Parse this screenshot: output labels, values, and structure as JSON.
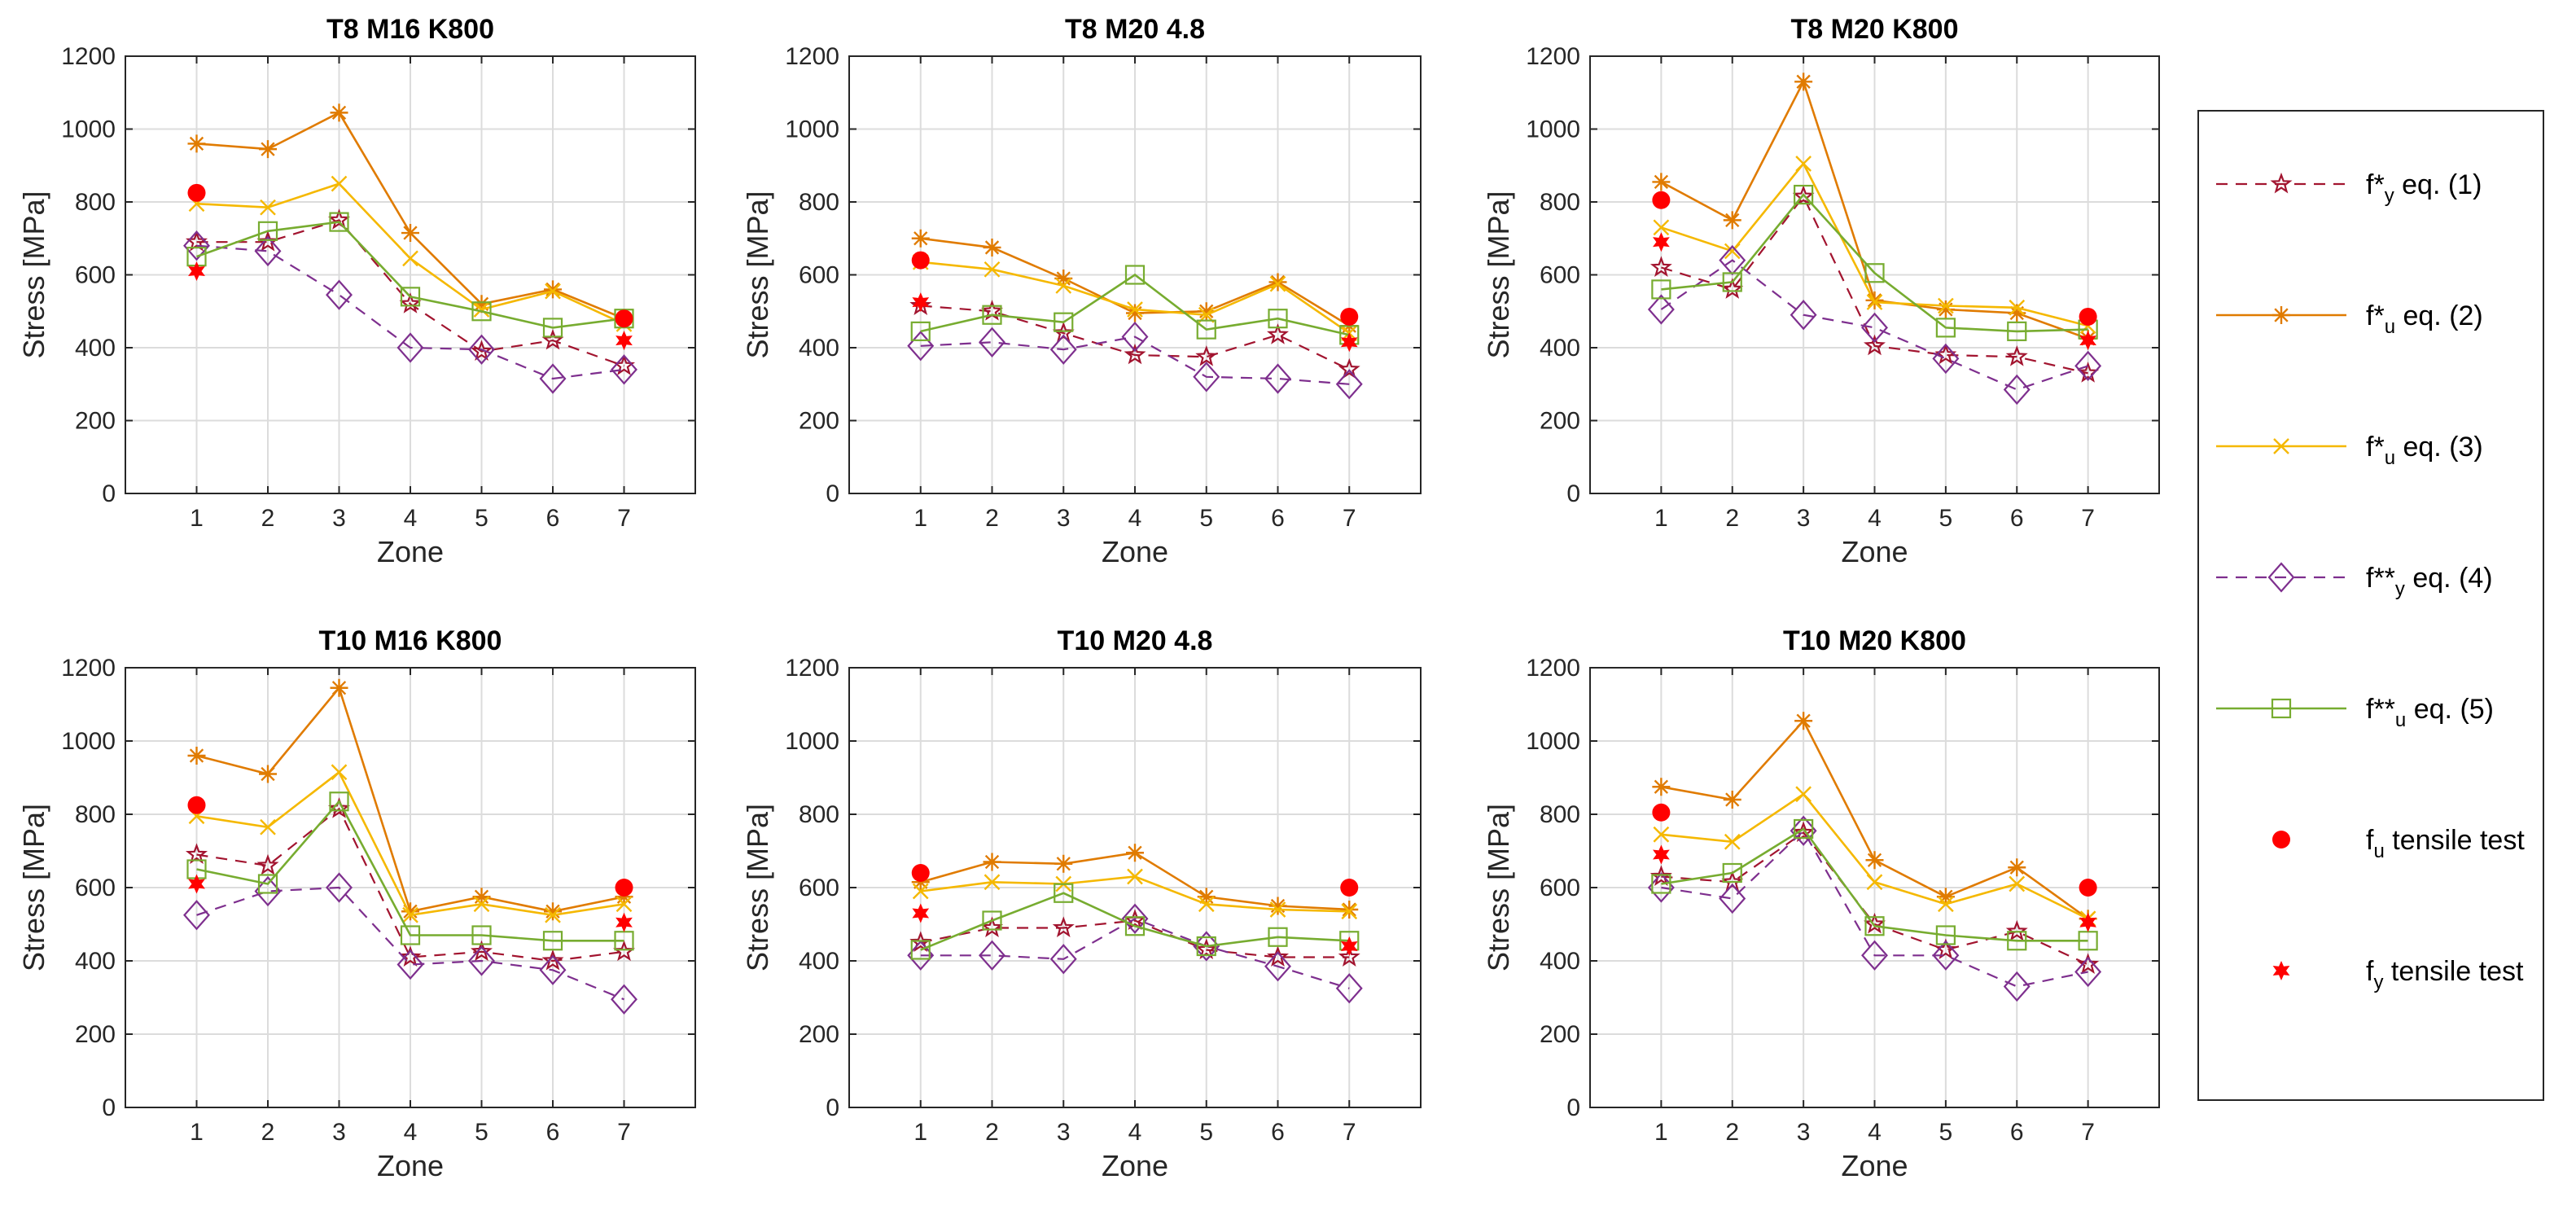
{
  "colors": {
    "fy_eq1": "#a2142f",
    "fu_eq2": "#e07b00",
    "fu_eq3": "#f5b800",
    "fyy_eq4": "#7e2f8e",
    "fuu_eq5": "#77ac30",
    "tensile": "#ff0000",
    "grid": "#dcdcdc"
  },
  "chart_data": [
    {
      "type": "line",
      "title": "T8 M16 K800",
      "xlabel": "Zone",
      "ylabel": "Stress [MPa]",
      "x": [
        1,
        2,
        3,
        4,
        5,
        6,
        7
      ],
      "xlim": [
        0,
        8
      ],
      "ylim": [
        0,
        1200
      ],
      "xticks": [
        "1",
        "2",
        "3",
        "4",
        "5",
        "6",
        "7"
      ],
      "yticks": [
        "0",
        "200",
        "400",
        "600",
        "800",
        "1000",
        "1200"
      ],
      "grid": true,
      "series": [
        {
          "key": "fy_eq1",
          "values": [
            690,
            690,
            750,
            520,
            390,
            420,
            350
          ]
        },
        {
          "key": "fu_eq2",
          "values": [
            960,
            945,
            1045,
            715,
            520,
            560,
            480
          ]
        },
        {
          "key": "fu_eq3",
          "values": [
            795,
            785,
            850,
            645,
            505,
            555,
            465
          ]
        },
        {
          "key": "fyy_eq4",
          "values": [
            680,
            665,
            545,
            400,
            395,
            315,
            340
          ]
        },
        {
          "key": "fuu_eq5",
          "values": [
            650,
            720,
            745,
            540,
            500,
            455,
            480
          ]
        },
        {
          "key": "fu_tensile",
          "points": [
            [
              1,
              825
            ],
            [
              7,
              480
            ]
          ]
        },
        {
          "key": "fy_tensile",
          "points": [
            [
              1,
              610
            ],
            [
              7,
              420
            ]
          ]
        }
      ]
    },
    {
      "type": "line",
      "title": "T8 M20 4.8",
      "xlabel": "Zone",
      "ylabel": "Stress [MPa]",
      "x": [
        1,
        2,
        3,
        4,
        5,
        6,
        7
      ],
      "xlim": [
        0,
        8
      ],
      "ylim": [
        0,
        1200
      ],
      "xticks": [
        "1",
        "2",
        "3",
        "4",
        "5",
        "6",
        "7"
      ],
      "yticks": [
        "0",
        "200",
        "400",
        "600",
        "800",
        "1000",
        "1200"
      ],
      "grid": true,
      "series": [
        {
          "key": "fy_eq1",
          "values": [
            515,
            500,
            440,
            380,
            375,
            435,
            340
          ]
        },
        {
          "key": "fu_eq2",
          "values": [
            700,
            675,
            590,
            495,
            500,
            580,
            460
          ]
        },
        {
          "key": "fu_eq3",
          "values": [
            635,
            615,
            570,
            505,
            490,
            575,
            440
          ]
        },
        {
          "key": "fyy_eq4",
          "values": [
            405,
            415,
            395,
            430,
            320,
            315,
            300
          ]
        },
        {
          "key": "fuu_eq5",
          "values": [
            445,
            490,
            470,
            600,
            450,
            480,
            435
          ]
        },
        {
          "key": "fu_tensile",
          "points": [
            [
              1,
              640
            ],
            [
              7,
              485
            ]
          ]
        },
        {
          "key": "fy_tensile",
          "points": [
            [
              1,
              525
            ],
            [
              7,
              415
            ]
          ]
        }
      ]
    },
    {
      "type": "line",
      "title": "T8 M20 K800",
      "xlabel": "Zone",
      "ylabel": "Stress [MPa]",
      "x": [
        1,
        2,
        3,
        4,
        5,
        6,
        7
      ],
      "xlim": [
        0,
        8
      ],
      "ylim": [
        0,
        1200
      ],
      "xticks": [
        "1",
        "2",
        "3",
        "4",
        "5",
        "6",
        "7"
      ],
      "yticks": [
        "0",
        "200",
        "400",
        "600",
        "800",
        "1000",
        "1200"
      ],
      "grid": true,
      "series": [
        {
          "key": "fy_eq1",
          "values": [
            620,
            560,
            815,
            405,
            380,
            375,
            330
          ]
        },
        {
          "key": "fu_eq2",
          "values": [
            855,
            750,
            1130,
            530,
            505,
            495,
            425
          ]
        },
        {
          "key": "fu_eq3",
          "values": [
            730,
            665,
            905,
            525,
            515,
            510,
            460
          ]
        },
        {
          "key": "fyy_eq4",
          "values": [
            505,
            640,
            490,
            455,
            370,
            285,
            350
          ]
        },
        {
          "key": "fuu_eq5",
          "values": [
            560,
            580,
            820,
            605,
            455,
            445,
            450
          ]
        },
        {
          "key": "fu_tensile",
          "points": [
            [
              1,
              805
            ],
            [
              7,
              485
            ]
          ]
        },
        {
          "key": "fy_tensile",
          "points": [
            [
              1,
              690
            ],
            [
              7,
              420
            ]
          ]
        }
      ]
    },
    {
      "type": "line",
      "title": "T10 M16 K800",
      "xlabel": "Zone",
      "ylabel": "Stress [MPa]",
      "x": [
        1,
        2,
        3,
        4,
        5,
        6,
        7
      ],
      "xlim": [
        0,
        8
      ],
      "ylim": [
        0,
        1200
      ],
      "xticks": [
        "1",
        "2",
        "3",
        "4",
        "5",
        "6",
        "7"
      ],
      "yticks": [
        "0",
        "200",
        "400",
        "600",
        "800",
        "1000",
        "1200"
      ],
      "grid": true,
      "series": [
        {
          "key": "fy_eq1",
          "values": [
            690,
            660,
            815,
            410,
            425,
            400,
            425
          ]
        },
        {
          "key": "fu_eq2",
          "values": [
            960,
            910,
            1145,
            535,
            575,
            535,
            575
          ]
        },
        {
          "key": "fu_eq3",
          "values": [
            795,
            765,
            915,
            525,
            555,
            525,
            555
          ]
        },
        {
          "key": "fyy_eq4",
          "values": [
            525,
            590,
            600,
            390,
            400,
            375,
            295
          ]
        },
        {
          "key": "fuu_eq5",
          "values": [
            650,
            610,
            835,
            470,
            470,
            455,
            455
          ]
        },
        {
          "key": "fu_tensile",
          "points": [
            [
              1,
              825
            ],
            [
              7,
              600
            ]
          ]
        },
        {
          "key": "fy_tensile",
          "points": [
            [
              1,
              610
            ],
            [
              7,
              505
            ]
          ]
        }
      ]
    },
    {
      "type": "line",
      "title": "T10 M20 4.8",
      "xlabel": "Zone",
      "ylabel": "Stress [MPa]",
      "x": [
        1,
        2,
        3,
        4,
        5,
        6,
        7
      ],
      "xlim": [
        0,
        8
      ],
      "ylim": [
        0,
        1200
      ],
      "xticks": [
        "1",
        "2",
        "3",
        "4",
        "5",
        "6",
        "7"
      ],
      "yticks": [
        "0",
        "200",
        "400",
        "600",
        "800",
        "1000",
        "1200"
      ],
      "grid": true,
      "series": [
        {
          "key": "fy_eq1",
          "values": [
            450,
            490,
            490,
            510,
            430,
            410,
            410
          ]
        },
        {
          "key": "fu_eq2",
          "values": [
            615,
            670,
            665,
            695,
            575,
            550,
            540
          ]
        },
        {
          "key": "fu_eq3",
          "values": [
            590,
            615,
            610,
            630,
            555,
            540,
            535
          ]
        },
        {
          "key": "fyy_eq4",
          "values": [
            415,
            415,
            405,
            515,
            440,
            385,
            325
          ]
        },
        {
          "key": "fuu_eq5",
          "values": [
            430,
            510,
            585,
            495,
            440,
            465,
            455
          ]
        },
        {
          "key": "fu_tensile",
          "points": [
            [
              1,
              640
            ],
            [
              7,
              600
            ]
          ]
        },
        {
          "key": "fy_tensile",
          "points": [
            [
              1,
              530
            ],
            [
              7,
              440
            ]
          ]
        }
      ]
    },
    {
      "type": "line",
      "title": "T10 M20 K800",
      "xlabel": "Zone",
      "ylabel": "Stress [MPa]",
      "x": [
        1,
        2,
        3,
        4,
        5,
        6,
        7
      ],
      "xlim": [
        0,
        8
      ],
      "ylim": [
        0,
        1200
      ],
      "xticks": [
        "1",
        "2",
        "3",
        "4",
        "5",
        "6",
        "7"
      ],
      "yticks": [
        "0",
        "200",
        "400",
        "600",
        "800",
        "1000",
        "1200"
      ],
      "grid": true,
      "series": [
        {
          "key": "fy_eq1",
          "values": [
            630,
            615,
            750,
            500,
            430,
            480,
            390
          ]
        },
        {
          "key": "fu_eq2",
          "values": [
            875,
            840,
            1055,
            675,
            575,
            655,
            515
          ]
        },
        {
          "key": "fu_eq3",
          "values": [
            745,
            725,
            855,
            615,
            555,
            610,
            515
          ]
        },
        {
          "key": "fyy_eq4",
          "values": [
            600,
            570,
            755,
            415,
            415,
            330,
            370
          ]
        },
        {
          "key": "fuu_eq5",
          "values": [
            610,
            640,
            760,
            495,
            470,
            455,
            455
          ]
        },
        {
          "key": "fu_tensile",
          "points": [
            [
              1,
              805
            ],
            [
              7,
              600
            ]
          ]
        },
        {
          "key": "fy_tensile",
          "points": [
            [
              1,
              690
            ],
            [
              7,
              505
            ]
          ]
        }
      ]
    }
  ],
  "legend": {
    "placement": "right",
    "entries": [
      {
        "key": "fy_eq1",
        "pre": "f*",
        "sub": "y",
        "post": " eq. (1)"
      },
      {
        "key": "fu_eq2",
        "pre": "f*",
        "sub": "u",
        "post": " eq. (2)"
      },
      {
        "key": "fu_eq3",
        "pre": "f*",
        "sub": "u",
        "post": " eq. (3)"
      },
      {
        "key": "fyy_eq4",
        "pre": "f**",
        "sub": "y",
        "post": " eq. (4)"
      },
      {
        "key": "fuu_eq5",
        "pre": "f**",
        "sub": "u",
        "post": " eq. (5)"
      },
      {
        "key": "fu_tensile",
        "pre": "f",
        "sub": "u",
        "post": " tensile test"
      },
      {
        "key": "fy_tensile",
        "pre": "f",
        "sub": "y",
        "post": " tensile test"
      }
    ]
  }
}
